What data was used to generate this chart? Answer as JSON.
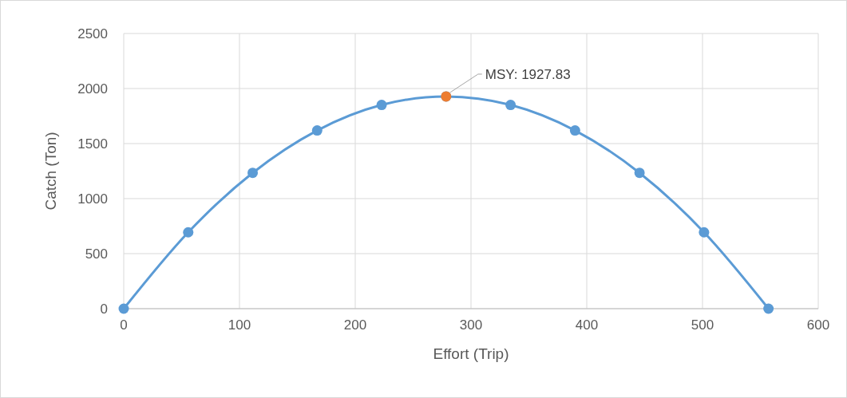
{
  "chart_data": {
    "type": "line",
    "xlabel": "Effort (Trip)",
    "ylabel": "Catch (Ton)",
    "xlim": [
      0,
      600
    ],
    "xticks": [
      0,
      100,
      200,
      300,
      400,
      500,
      600
    ],
    "ylim": [
      0,
      2500
    ],
    "yticks": [
      0,
      500,
      1000,
      1500,
      2000,
      2500
    ],
    "grid": true,
    "marker": "circle",
    "line_style": "solid",
    "series": [
      {
        "color": "#5b9bd5",
        "x": [
          0,
          55.7,
          111.4,
          167.1,
          222.8,
          278.5,
          334.2,
          389.9,
          445.6,
          501.3,
          557
        ],
        "values": [
          0,
          694,
          1234,
          1619,
          1851,
          1927.83,
          1851,
          1619,
          1234,
          694,
          0
        ]
      },
      {
        "type": "scatter",
        "color": "#ed7d31",
        "x": [
          278.5
        ],
        "values": [
          1927.83
        ]
      }
    ],
    "annotations": [
      {
        "text": "MSY: 1927.83",
        "x": 278.5,
        "y": 1927.83
      }
    ]
  }
}
